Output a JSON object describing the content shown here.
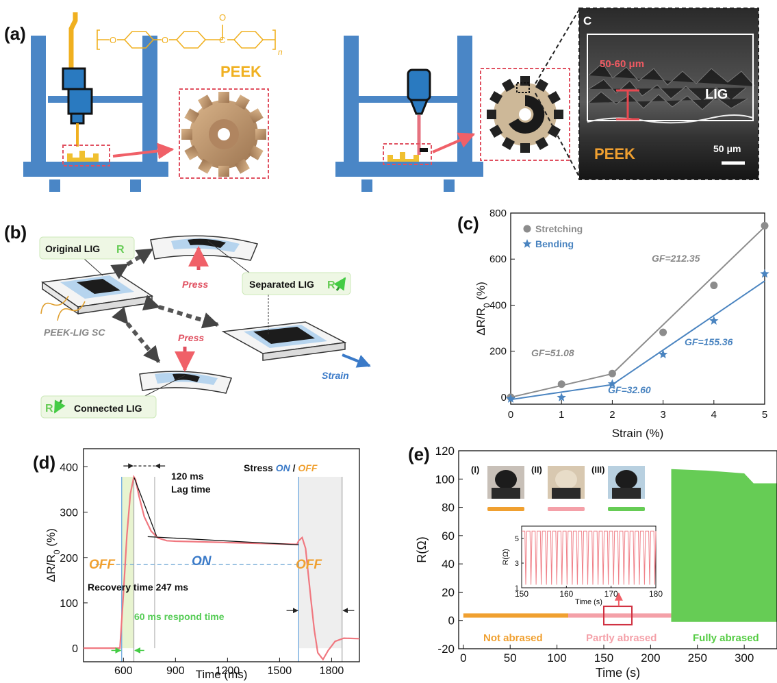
{
  "panel_a": {
    "label": "(a)",
    "material_label": "PEEK",
    "polymer_n": "n",
    "sem": {
      "corner_label": "C",
      "thickness_label": "50-60 μm",
      "lig_label": "LIG",
      "peek_label": "PEEK",
      "scale_label": "50 μm"
    }
  },
  "panel_b": {
    "label": "(b)",
    "original": "Original LIG",
    "separated": "Separated LIG",
    "connected": "Connected LIG",
    "r_symbol": "R",
    "press_top": "Press",
    "press_bottom": "Press",
    "strain": "Strain",
    "device": "PEEK-LIG SC"
  },
  "panel_c": {
    "label": "(c)",
    "annotations": {
      "gf1": "GF=51.08",
      "gf2": "GF=212.35",
      "gf3": "GF=32.60",
      "gf4": "GF=155.36"
    },
    "chart_data": {
      "type": "scatter",
      "xlabel": "Strain (%)",
      "ylabel": "ΔR/R0 (%)",
      "xlim": [
        0,
        5
      ],
      "ylim": [
        -30,
        800
      ],
      "xticks": [
        0,
        1,
        2,
        3,
        4,
        5
      ],
      "yticks": [
        0,
        200,
        400,
        600,
        800
      ],
      "legend_position": "top-left",
      "series": [
        {
          "name": "Stretching",
          "marker": "circle",
          "color": "#8c8c8c",
          "x": [
            0,
            1,
            2,
            3,
            4,
            5
          ],
          "y": [
            0,
            57,
            103,
            282,
            486,
            745
          ],
          "fit": [
            [
              0,
              2,
              0,
              102
            ],
            [
              2,
              5,
              102,
              740
            ]
          ]
        },
        {
          "name": "Bending",
          "marker": "star",
          "color": "#4a84c0",
          "x": [
            0,
            1,
            2,
            3,
            4,
            5
          ],
          "y": [
            -7,
            -1,
            58,
            186,
            332,
            536
          ],
          "fit": [
            [
              0,
              2,
              -10,
              55
            ],
            [
              2,
              5,
              55,
              505
            ]
          ]
        }
      ]
    }
  },
  "panel_d": {
    "label": "(d)",
    "annotations": {
      "lag_value": "120 ms",
      "lag_text": "Lag time",
      "stress_prefix": "Stress ",
      "stress_on": "ON",
      "stress_sep": " / ",
      "stress_off": "OFF",
      "off_left": "OFF",
      "on_mid": "ON",
      "off_right": "OFF",
      "recovery": "Recovery time 247 ms",
      "respond": "60 ms respond time"
    },
    "chart_data": {
      "type": "line",
      "xlabel": "Time (ms)",
      "ylabel": "ΔR/R0 (%)",
      "xlim": [
        370,
        1960
      ],
      "ylim": [
        -30,
        440
      ],
      "xticks": [
        600,
        900,
        1200,
        1500,
        1800
      ],
      "yticks": [
        0,
        100,
        200,
        300,
        400
      ],
      "series": [
        {
          "color": "#f07880",
          "x": [
            370,
            580,
            600,
            620,
            640,
            660,
            670,
            690,
            720,
            760,
            800,
            850,
            900,
            1000,
            1200,
            1400,
            1600,
            1610,
            1630,
            1650,
            1680,
            1700,
            1720,
            1750,
            1780,
            1820,
            1870,
            1960
          ],
          "y": [
            0,
            0,
            120,
            250,
            340,
            378,
            372,
            335,
            290,
            258,
            243,
            237,
            236,
            235,
            233,
            231,
            229,
            237,
            244,
            220,
            110,
            40,
            -10,
            -25,
            -5,
            15,
            22,
            21
          ]
        }
      ]
    }
  },
  "panel_e": {
    "label": "(e)",
    "labels": {
      "not_abrased": "Not abrased",
      "partly_abrased": "Partly abrased",
      "fully_abrased": "Fully abrased",
      "i": "(I)",
      "ii": "(II)",
      "iii": "(III)"
    },
    "chart_data": {
      "type": "line",
      "xlabel": "Time (s)",
      "ylabel": "R(Ω)",
      "xlim": [
        -5,
        335
      ],
      "ylim": [
        -20,
        120
      ],
      "xticks": [
        0,
        50,
        100,
        150,
        200,
        250,
        300
      ],
      "yticks": [
        -20,
        0,
        20,
        40,
        60,
        80,
        100,
        120
      ],
      "series": [
        {
          "name": "Not abrased",
          "color": "#f0a030",
          "x": [
            0,
            112
          ],
          "y": [
            3.5,
            3.5
          ]
        },
        {
          "name": "Partly abrased",
          "color": "#f4a0a8",
          "x": [
            112,
            222
          ],
          "y": [
            3.5,
            3.5
          ]
        },
        {
          "name": "Fully abrased",
          "color": "#66cc55",
          "x": [
            222,
            260,
            300,
            310,
            335
          ],
          "y": [
            107,
            106,
            104,
            97,
            97
          ]
        }
      ],
      "inset": {
        "xlabel": "Time (s)",
        "ylabel": "R(Ω)",
        "xlim": [
          150,
          180
        ],
        "ylim": [
          1,
          6
        ],
        "xticks": [
          150,
          160,
          170,
          180
        ],
        "yticks": [
          1,
          3,
          5
        ],
        "color": "#f08088",
        "high": 5.6,
        "low": 1.25,
        "cycles": 26
      }
    }
  }
}
